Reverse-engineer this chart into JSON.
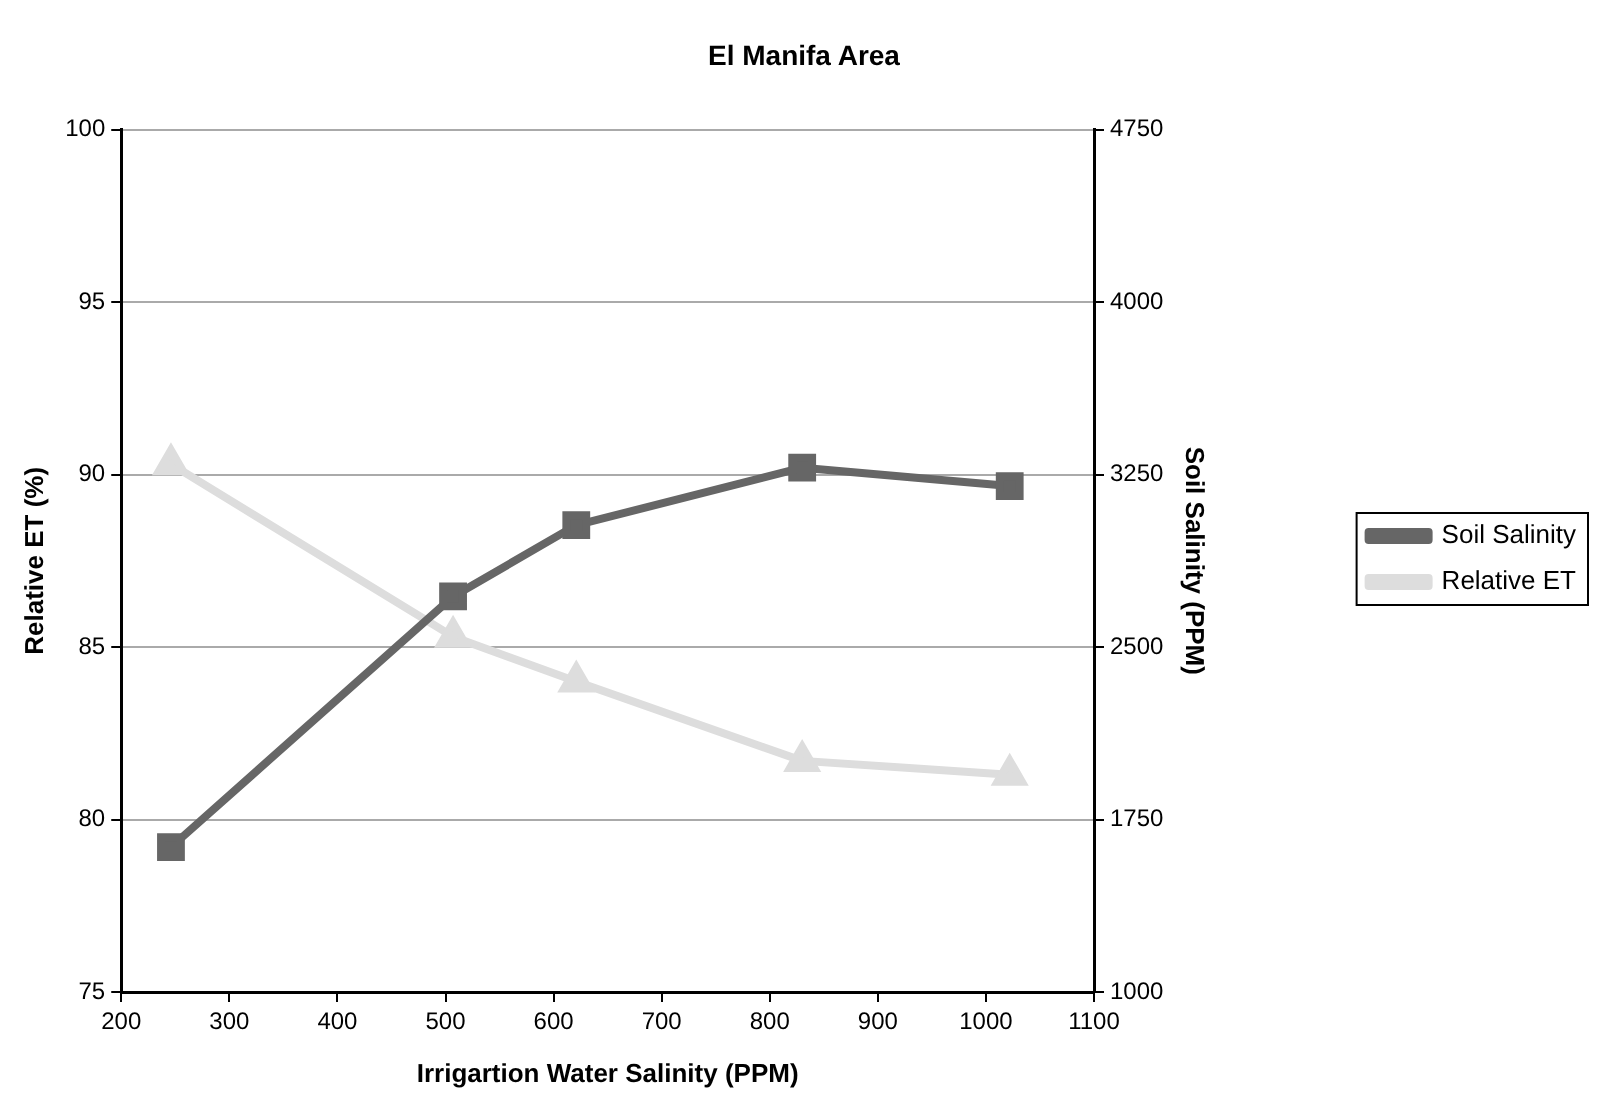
{
  "chart_data": {
    "type": "line",
    "title": "El Manifa Area",
    "xlabel": "Irrigartion Water Salinity (PPM)",
    "ylabel": "Relative ET (%)",
    "y2label": "Soil Salinity (PPM)",
    "x": [
      246,
      507,
      621,
      830,
      1022
    ],
    "series": [
      {
        "name": "Soil Salinity",
        "color": "#666666",
        "axis": "y2",
        "marker": "square",
        "values": [
          1630,
          2720,
          3030,
          3280,
          3200
        ]
      },
      {
        "name": "Relative ET",
        "color": "#dddddd",
        "marker": "triangle",
        "values": [
          90.3,
          85.3,
          84.0,
          81.7,
          81.3
        ]
      }
    ],
    "xlim": [
      200,
      1100
    ],
    "xticks": [
      200,
      300,
      400,
      500,
      600,
      700,
      800,
      900,
      1000,
      1100
    ],
    "ylim": [
      75,
      100
    ],
    "yticks": [
      75,
      80,
      85,
      90,
      95,
      100
    ],
    "y2lim": [
      1000,
      4750
    ],
    "y2ticks": [
      1000,
      1750,
      2500,
      3250,
      4000,
      4750
    ],
    "grid": "y",
    "legend": "right",
    "line_style": "solid"
  }
}
